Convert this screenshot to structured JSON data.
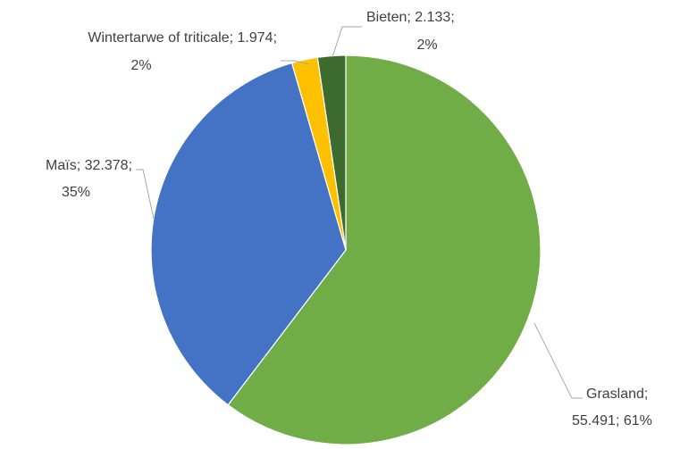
{
  "chart_data": {
    "type": "pie",
    "categories": [
      "Grasland",
      "Maïs",
      "Wintertarwe of triticale",
      "Bieten"
    ],
    "values": [
      55491,
      32378,
      1974,
      2133
    ],
    "value_labels": [
      "55.491",
      "32.378",
      "1.974",
      "2.133"
    ],
    "percent_labels": [
      "61%",
      "35%",
      "2%",
      "2%"
    ],
    "label_separator": "; ",
    "colors": [
      "#70ad47",
      "#4472c4",
      "#ffc000",
      "#3d6b2e"
    ]
  }
}
